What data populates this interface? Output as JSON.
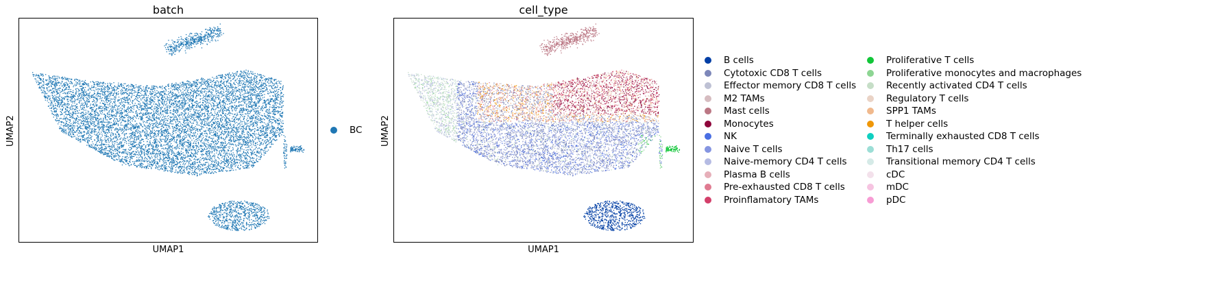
{
  "chart_data": [
    {
      "type": "scatter",
      "title": "batch",
      "xlabel": "UMAP1",
      "ylabel": "UMAP2",
      "grid": false,
      "ticks": false,
      "legend_placement": "right",
      "legend": [
        {
          "label": "BC",
          "color": "#1f77b4"
        }
      ]
    },
    {
      "type": "scatter",
      "title": "cell_type",
      "xlabel": "UMAP1",
      "ylabel": "UMAP2",
      "grid": false,
      "ticks": false,
      "legend_placement": "right",
      "legend": [
        {
          "label": "B cells",
          "color": "#023fa5"
        },
        {
          "label": "Cytotoxic CD8 T cells",
          "color": "#7d87b9"
        },
        {
          "label": "Effector memory CD8 T cells",
          "color": "#bec1d4"
        },
        {
          "label": "M2 TAMs",
          "color": "#d6bcc0"
        },
        {
          "label": "Mast cells",
          "color": "#bb7784"
        },
        {
          "label": "Monocytes",
          "color": "#8e063b"
        },
        {
          "label": "NK",
          "color": "#4a6fe3"
        },
        {
          "label": "Naive T cells",
          "color": "#8595e1"
        },
        {
          "label": "Naive-memory CD4 T cells",
          "color": "#b5bbe3"
        },
        {
          "label": "Plasma B cells",
          "color": "#e6afb9"
        },
        {
          "label": "Pre-exhausted CD8 T cells",
          "color": "#e07b91"
        },
        {
          "label": "Proinflamatory TAMs",
          "color": "#d33f6a"
        },
        {
          "label": "Proliferative T cells",
          "color": "#11c638"
        },
        {
          "label": "Proliferative monocytes and macrophages",
          "color": "#8dd593"
        },
        {
          "label": "Recently activated CD4 T cells",
          "color": "#c6dec7"
        },
        {
          "label": "Regulatory T cells",
          "color": "#ead3c6"
        },
        {
          "label": "SPP1 TAMs",
          "color": "#f0b98d"
        },
        {
          "label": "T helper cells",
          "color": "#ef9708"
        },
        {
          "label": "Terminally exhausted CD8 T cells",
          "color": "#0fcfc0"
        },
        {
          "label": "Th17 cells",
          "color": "#9cded6"
        },
        {
          "label": "Transitional memory CD4 T cells",
          "color": "#d5eae7"
        },
        {
          "label": "cDC",
          "color": "#f3e1eb"
        },
        {
          "label": "mDC",
          "color": "#f6c4e1"
        },
        {
          "label": "pDC",
          "color": "#f79cd4"
        }
      ]
    }
  ]
}
